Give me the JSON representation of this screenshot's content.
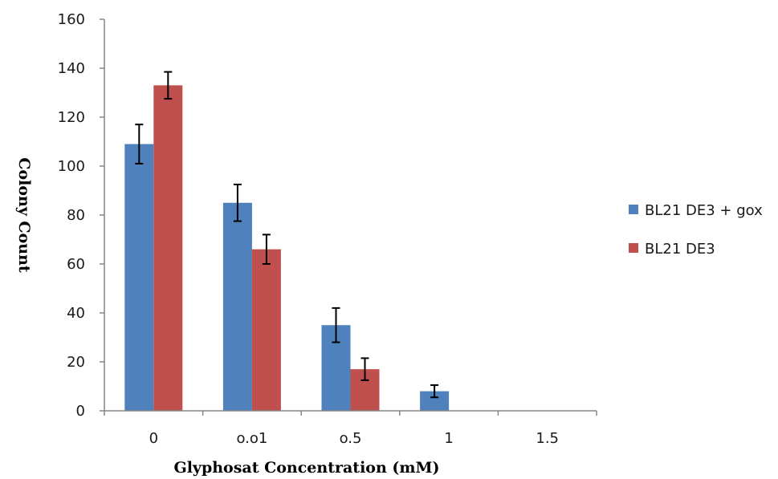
{
  "chart_data": {
    "type": "bar",
    "title": "",
    "xlabel": "Glyphosat Concentration (mM)",
    "ylabel": "Colony Count",
    "categories": [
      "0",
      "o.o1",
      "o.5",
      "1",
      "1.5"
    ],
    "ylim": [
      0,
      160
    ],
    "yticks": [
      0,
      20,
      40,
      60,
      80,
      100,
      120,
      140,
      160
    ],
    "grid": false,
    "legend_position": "right",
    "series": [
      {
        "name": "BL21 DE3 + gox",
        "color": "#4F81BD",
        "values": [
          109,
          85,
          35,
          8,
          0
        ],
        "errors": [
          8,
          7.5,
          7,
          2.5,
          0
        ]
      },
      {
        "name": "BL21 DE3",
        "color": "#C0504D",
        "values": [
          133,
          66,
          17,
          0,
          0
        ],
        "errors": [
          5.5,
          6,
          4.5,
          0,
          0
        ]
      }
    ]
  }
}
